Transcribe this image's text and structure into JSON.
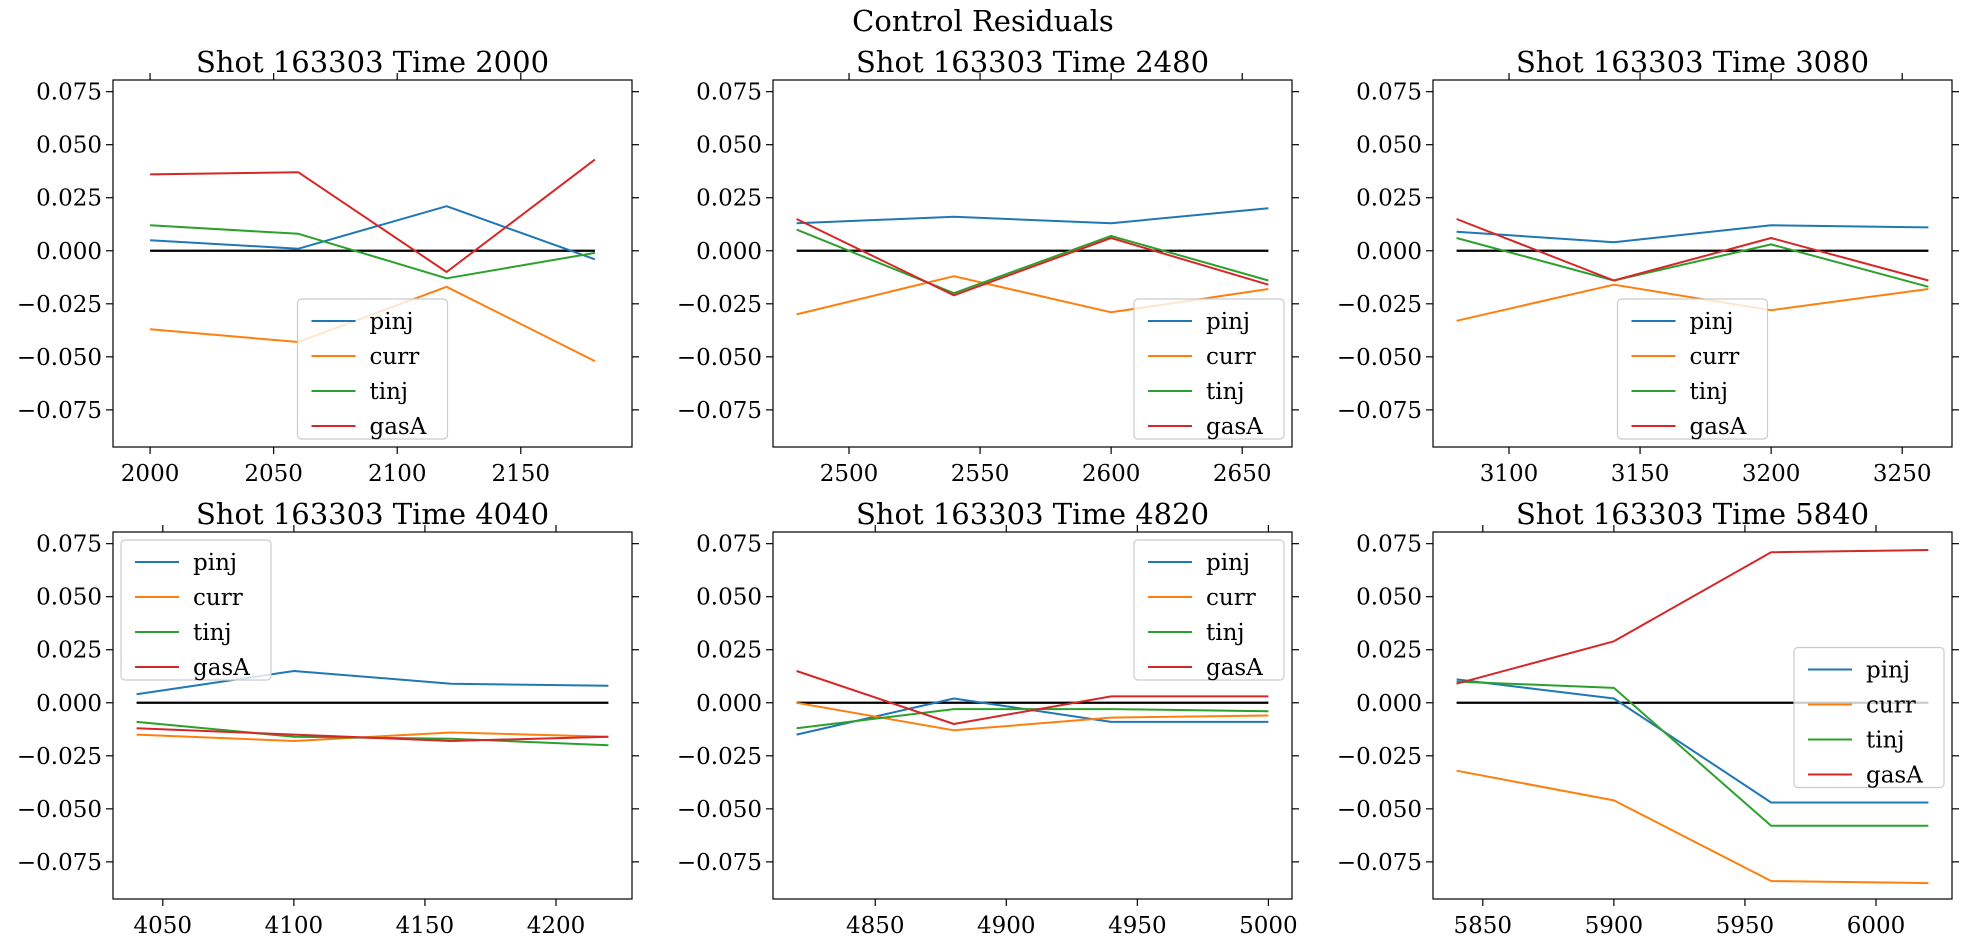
{
  "figure": {
    "title": "Control Residuals"
  },
  "colors": {
    "pinj": "#1f77b4",
    "curr": "#ff7f0e",
    "tinj": "#2ca02c",
    "gasA": "#d62728",
    "zero_line": "#000000"
  },
  "chart_data": [
    {
      "type": "line",
      "title": "Shot 163303   Time 2000",
      "x": [
        2000,
        2060,
        2120,
        2180
      ],
      "xlim": [
        1985,
        2195
      ],
      "xticks": [
        2000,
        2050,
        2100,
        2150
      ],
      "ylim": [
        -0.0925,
        0.0805
      ],
      "yticks": [
        -0.075,
        -0.05,
        -0.025,
        0.0,
        0.025,
        0.05,
        0.075
      ],
      "ytick_labels": [
        "−0.075",
        "−0.050",
        "−0.025",
        "0.000",
        "0.025",
        "0.050",
        "0.075"
      ],
      "zero_line": true,
      "legend_loc": "lower center",
      "series": [
        {
          "name": "pinj",
          "values": [
            0.005,
            0.001,
            0.021,
            -0.004
          ]
        },
        {
          "name": "curr",
          "values": [
            -0.037,
            -0.043,
            -0.017,
            -0.052
          ]
        },
        {
          "name": "tinj",
          "values": [
            0.012,
            0.008,
            -0.013,
            -0.001
          ]
        },
        {
          "name": "gasA",
          "values": [
            0.036,
            0.037,
            -0.01,
            0.043
          ]
        }
      ]
    },
    {
      "type": "line",
      "title": "Shot 163303   Time 2480",
      "x": [
        2480,
        2540,
        2600,
        2660
      ],
      "xlim": [
        2471,
        2669
      ],
      "xticks": [
        2500,
        2550,
        2600,
        2650
      ],
      "ylim": [
        -0.0925,
        0.0805
      ],
      "yticks": [
        -0.075,
        -0.05,
        -0.025,
        0.0,
        0.025,
        0.05,
        0.075
      ],
      "ytick_labels": [
        "−0.075",
        "−0.050",
        "−0.025",
        "0.000",
        "0.025",
        "0.050",
        "0.075"
      ],
      "zero_line": true,
      "legend_loc": "lower right",
      "series": [
        {
          "name": "pinj",
          "values": [
            0.013,
            0.016,
            0.013,
            0.02
          ]
        },
        {
          "name": "curr",
          "values": [
            -0.03,
            -0.012,
            -0.029,
            -0.018
          ]
        },
        {
          "name": "tinj",
          "values": [
            0.01,
            -0.02,
            0.007,
            -0.014
          ]
        },
        {
          "name": "gasA",
          "values": [
            0.015,
            -0.021,
            0.006,
            -0.016
          ]
        }
      ]
    },
    {
      "type": "line",
      "title": "Shot 163303   Time 3080",
      "x": [
        3080,
        3140,
        3200,
        3260
      ],
      "xlim": [
        3071,
        3269
      ],
      "xticks": [
        3100,
        3150,
        3200,
        3250
      ],
      "ylim": [
        -0.0925,
        0.0805
      ],
      "yticks": [
        -0.075,
        -0.05,
        -0.025,
        0.0,
        0.025,
        0.05,
        0.075
      ],
      "ytick_labels": [
        "−0.075",
        "−0.050",
        "−0.025",
        "0.000",
        "0.025",
        "0.050",
        "0.075"
      ],
      "zero_line": true,
      "legend_loc": "lower center",
      "series": [
        {
          "name": "pinj",
          "values": [
            0.009,
            0.004,
            0.012,
            0.011
          ]
        },
        {
          "name": "curr",
          "values": [
            -0.033,
            -0.016,
            -0.028,
            -0.018
          ]
        },
        {
          "name": "tinj",
          "values": [
            0.006,
            -0.014,
            0.003,
            -0.017
          ]
        },
        {
          "name": "gasA",
          "values": [
            0.015,
            -0.014,
            0.006,
            -0.014
          ]
        }
      ]
    },
    {
      "type": "line",
      "title": "Shot 163303   Time 4040",
      "x": [
        4040,
        4100,
        4160,
        4220
      ],
      "xlim": [
        4031,
        4229
      ],
      "xticks": [
        4050,
        4100,
        4150,
        4200
      ],
      "ylim": [
        -0.0925,
        0.0805
      ],
      "yticks": [
        -0.075,
        -0.05,
        -0.025,
        0.0,
        0.025,
        0.05,
        0.075
      ],
      "ytick_labels": [
        "−0.075",
        "−0.050",
        "−0.025",
        "0.000",
        "0.025",
        "0.050",
        "0.075"
      ],
      "zero_line": true,
      "legend_loc": "upper left",
      "series": [
        {
          "name": "pinj",
          "values": [
            0.004,
            0.015,
            0.009,
            0.008
          ]
        },
        {
          "name": "curr",
          "values": [
            -0.015,
            -0.018,
            -0.014,
            -0.016
          ]
        },
        {
          "name": "tinj",
          "values": [
            -0.009,
            -0.016,
            -0.017,
            -0.02
          ]
        },
        {
          "name": "gasA",
          "values": [
            -0.012,
            -0.015,
            -0.018,
            -0.016
          ]
        }
      ]
    },
    {
      "type": "line",
      "title": "Shot 163303   Time 4820",
      "x": [
        4820,
        4880,
        4940,
        5000
      ],
      "xlim": [
        4811,
        5009
      ],
      "xticks": [
        4850,
        4900,
        4950,
        5000
      ],
      "ylim": [
        -0.0925,
        0.0805
      ],
      "yticks": [
        -0.075,
        -0.05,
        -0.025,
        0.0,
        0.025,
        0.05,
        0.075
      ],
      "ytick_labels": [
        "−0.075",
        "−0.050",
        "−0.025",
        "0.000",
        "0.025",
        "0.050",
        "0.075"
      ],
      "zero_line": true,
      "legend_loc": "upper right",
      "series": [
        {
          "name": "pinj",
          "values": [
            -0.015,
            0.002,
            -0.009,
            -0.009
          ]
        },
        {
          "name": "curr",
          "values": [
            0.0,
            -0.013,
            -0.007,
            -0.006
          ]
        },
        {
          "name": "tinj",
          "values": [
            -0.012,
            -0.003,
            -0.003,
            -0.004
          ]
        },
        {
          "name": "gasA",
          "values": [
            0.015,
            -0.01,
            0.003,
            0.003
          ]
        }
      ]
    },
    {
      "type": "line",
      "title": "Shot 163303   Time 5840",
      "x": [
        5840,
        5900,
        5960,
        6020
      ],
      "xlim": [
        5831,
        6029
      ],
      "xticks": [
        5850,
        5900,
        5950,
        6000
      ],
      "ylim": [
        -0.0925,
        0.0805
      ],
      "yticks": [
        -0.075,
        -0.05,
        -0.025,
        0.0,
        0.025,
        0.05,
        0.075
      ],
      "ytick_labels": [
        "−0.075",
        "−0.050",
        "−0.025",
        "0.000",
        "0.025",
        "0.050",
        "0.075"
      ],
      "zero_line": true,
      "legend_loc": "center right",
      "series": [
        {
          "name": "pinj",
          "values": [
            0.011,
            0.002,
            -0.047,
            -0.047
          ]
        },
        {
          "name": "curr",
          "values": [
            -0.032,
            -0.046,
            -0.084,
            -0.085
          ]
        },
        {
          "name": "tinj",
          "values": [
            0.01,
            0.007,
            -0.058,
            -0.058
          ]
        },
        {
          "name": "gasA",
          "values": [
            0.009,
            0.029,
            0.071,
            0.072
          ]
        }
      ]
    }
  ]
}
